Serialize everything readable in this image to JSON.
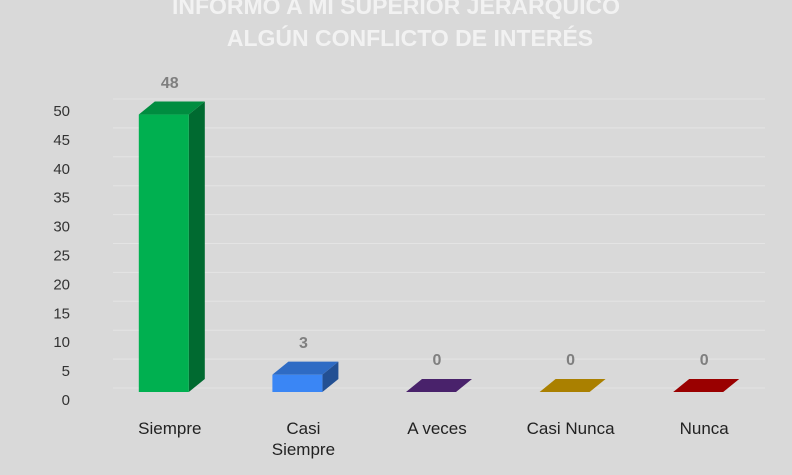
{
  "chart_data": {
    "type": "bar3d",
    "title": [
      "INFORMO A MI SUPERIOR JERÁRQUICO",
      "ALGÚN  CONFLICTO DE INTERÉS"
    ],
    "categories": [
      "Siempre",
      "Casi Siempre",
      "A veces",
      "Casi Nunca",
      "Nunca"
    ],
    "values": [
      48,
      3,
      0,
      0,
      0
    ],
    "colors": [
      "#00b050",
      "#3a86f5",
      "#5b2a86",
      "#d4a000",
      "#c00000"
    ],
    "ylim": [
      0,
      50
    ],
    "yticks": [
      0,
      5,
      10,
      15,
      20,
      25,
      30,
      35,
      40,
      45,
      50
    ],
    "grid": true
  }
}
